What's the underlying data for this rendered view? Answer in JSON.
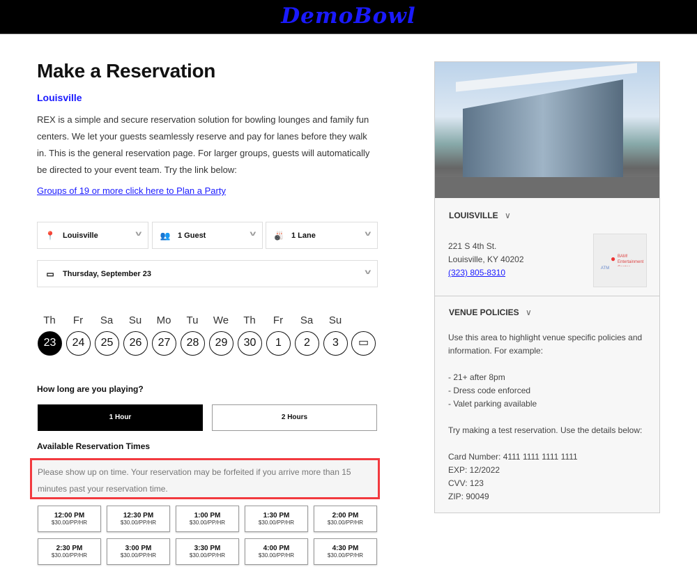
{
  "header": {
    "logo": "DemoBowl"
  },
  "main": {
    "title": "Make a Reservation",
    "location": "Louisville",
    "intro": "REX is a simple and secure reservation solution for bowling lounges and family fun centers. We let your guests seamlessly reserve and pay for lanes before they walk in. This is the general reservation page. For larger groups, guests will automatically be directed to your event team. Try the link below:",
    "party_link": "Groups of 19 or more click here to Plan a Party",
    "selects": {
      "location": "Louisville",
      "guests": "1 Guest",
      "lanes": "1 Lane",
      "date": "Thursday, September 23"
    },
    "days": [
      {
        "dow": "Th",
        "date": "23",
        "selected": true
      },
      {
        "dow": "Fr",
        "date": "24"
      },
      {
        "dow": "Sa",
        "date": "25"
      },
      {
        "dow": "Su",
        "date": "26"
      },
      {
        "dow": "Mo",
        "date": "27"
      },
      {
        "dow": "Tu",
        "date": "28"
      },
      {
        "dow": "We",
        "date": "29"
      },
      {
        "dow": "Th",
        "date": "30"
      },
      {
        "dow": "Fr",
        "date": "1"
      },
      {
        "dow": "Sa",
        "date": "2"
      },
      {
        "dow": "Su",
        "date": "3"
      }
    ],
    "duration_label": "How long are you playing?",
    "durations": [
      {
        "label": "1 Hour",
        "selected": true
      },
      {
        "label": "2 Hours"
      }
    ],
    "times_label": "Available Reservation Times",
    "notice": "Please show up on time. Your reservation may be forfeited if you arrive more than 15 minutes past your reservation time.",
    "slots": [
      {
        "time": "12:00 PM",
        "price": "$30.00/PP/HR"
      },
      {
        "time": "12:30 PM",
        "price": "$30.00/PP/HR"
      },
      {
        "time": "1:00 PM",
        "price": "$30.00/PP/HR"
      },
      {
        "time": "1:30 PM",
        "price": "$30.00/PP/HR"
      },
      {
        "time": "2:00 PM",
        "price": "$30.00/PP/HR"
      },
      {
        "time": "2:30 PM",
        "price": "$30.00/PP/HR"
      },
      {
        "time": "3:00 PM",
        "price": "$30.00/PP/HR"
      },
      {
        "time": "3:30 PM",
        "price": "$30.00/PP/HR"
      },
      {
        "time": "4:00 PM",
        "price": "$30.00/PP/HR"
      },
      {
        "time": "4:30 PM",
        "price": "$30.00/PP/HR"
      }
    ]
  },
  "venue": {
    "name": "LOUISVILLE",
    "address1": "221 S 4th St.",
    "address2": "Louisville, KY 40202",
    "phone": "(323) 805-8310",
    "map_label": "BAM! Entertainment Center",
    "map_atm": "ATM",
    "policies_title": "VENUE POLICIES",
    "policies": [
      "Use this area to highlight venue specific policies and information. For example:",
      "",
      "- 21+ after 8pm",
      "- Dress code enforced",
      "- Valet parking available",
      "",
      "Try making a test reservation. Use the details below:",
      "",
      "Card Number: 4111 1111 1111 1111",
      "EXP: 12/2022",
      "CVV: 123",
      "ZIP: 90049"
    ]
  },
  "colors": {
    "accent": "#1a1aff",
    "highlight": "#f23a3f"
  }
}
